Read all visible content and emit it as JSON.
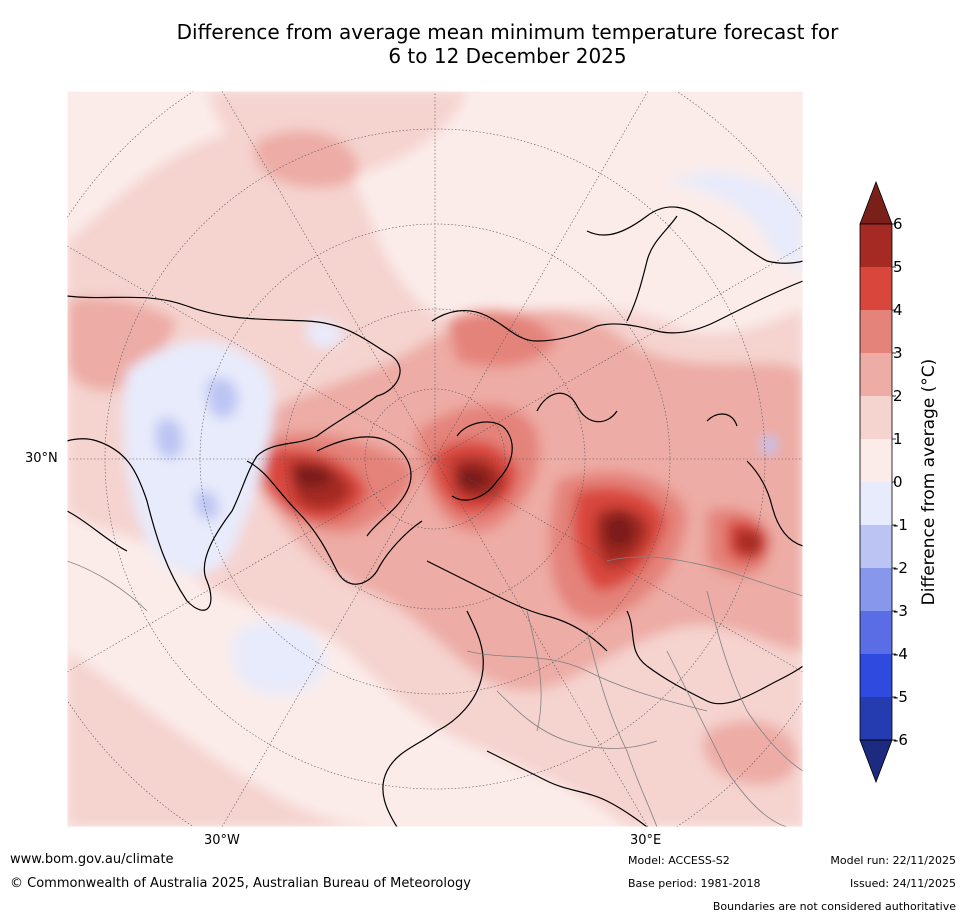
{
  "title": {
    "line1": "Difference from average mean minimum temperature forecast for",
    "line2": "6 to 12 December 2025"
  },
  "map": {
    "projection": "north polar stereographic",
    "lat_label": "30°N",
    "lon_labels": [
      "30°W",
      "30°E"
    ]
  },
  "colorbar": {
    "label": "Difference from average (°C)",
    "ticks": [
      "6",
      "5",
      "4",
      "3",
      "2",
      "1",
      "0",
      "-1",
      "-2",
      "-3",
      "-4",
      "-5",
      "-6"
    ],
    "colors": [
      "#7b1f1a",
      "#a52a24",
      "#d9473c",
      "#e4837a",
      "#edaca5",
      "#f5d3cf",
      "#fbecea",
      "#e8ebfb",
      "#bcc4f3",
      "#8797ec",
      "#5b6de4",
      "#2f4ade",
      "#243caf",
      "#1c2a80"
    ]
  },
  "footer": {
    "url": "www.bom.gov.au/climate",
    "copyright": "© Commonwealth of Australia 2025, Australian Bureau of Meteorology",
    "model": "Model: ACCESS-S2",
    "base_period": "Base period: 1981-2018",
    "model_run": "Model run: 22/11/2025",
    "issued": "Issued: 24/11/2025",
    "disclaimer": "Boundaries are not considered authoritative"
  }
}
